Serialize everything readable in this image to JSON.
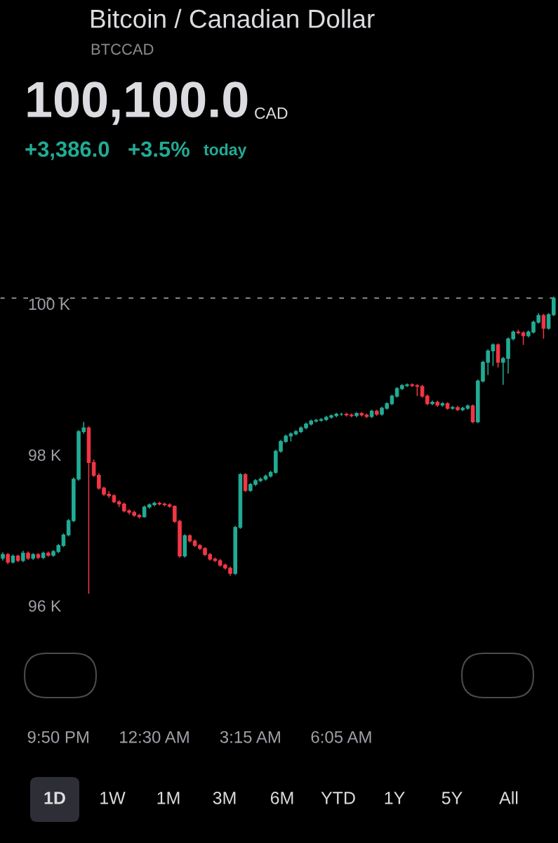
{
  "chart_data": {
    "type": "candlestick",
    "title": "Bitcoin / Canadian Dollar",
    "subtitle": "BTCCAD",
    "annotations": [
      "100,100.0",
      "CAD",
      "+3,386.0",
      "+3.5%",
      "today",
      "1D",
      "1W",
      "1M",
      "3M",
      "6M",
      "YTD",
      "1Y",
      "5Y",
      "All"
    ],
    "categories": [
      null,
      null,
      null,
      null,
      null,
      null,
      null,
      null,
      null,
      null,
      null,
      "9:50 PM",
      null,
      null,
      null,
      null,
      null,
      null,
      null,
      null,
      null,
      null,
      null,
      null,
      null,
      null,
      null,
      null,
      null,
      null,
      "12:30 AM",
      null,
      null,
      null,
      null,
      null,
      null,
      null,
      null,
      null,
      null,
      null,
      null,
      null,
      null,
      null,
      null,
      null,
      null,
      "3:15 AM",
      null,
      null,
      null,
      null,
      null,
      null,
      null,
      null,
      null,
      null,
      null,
      null,
      null,
      null,
      null,
      null,
      null,
      "6:05 AM",
      null,
      null,
      null,
      null,
      null,
      null,
      null,
      null,
      null,
      null,
      null,
      null,
      null,
      null,
      null,
      null,
      null,
      null,
      null,
      null,
      null,
      null,
      null,
      null,
      null,
      null,
      null,
      null,
      null,
      null,
      null,
      null,
      null,
      null,
      null,
      null,
      null,
      null,
      null,
      null,
      null,
      null
    ],
    "ohlc": [
      [
        96650,
        96730,
        96620,
        96700
      ],
      [
        96700,
        96720,
        96570,
        96600
      ],
      [
        96600,
        96700,
        96580,
        96680
      ],
      [
        96680,
        96700,
        96600,
        96620
      ],
      [
        96620,
        96750,
        96600,
        96720
      ],
      [
        96720,
        96740,
        96630,
        96650
      ],
      [
        96650,
        96720,
        96630,
        96700
      ],
      [
        96700,
        96720,
        96640,
        96660
      ],
      [
        96660,
        96740,
        96640,
        96720
      ],
      [
        96720,
        96740,
        96670,
        96690
      ],
      [
        96690,
        96760,
        96670,
        96740
      ],
      [
        96740,
        96840,
        96720,
        96820
      ],
      [
        96820,
        96980,
        96800,
        96960
      ],
      [
        96960,
        97170,
        96940,
        97150
      ],
      [
        97150,
        97720,
        97130,
        97700
      ],
      [
        97700,
        98350,
        97680,
        98330
      ],
      [
        98330,
        98460,
        98300,
        98380
      ],
      [
        98380,
        98400,
        96180,
        97920
      ],
      [
        97920,
        97960,
        97730,
        97750
      ],
      [
        97750,
        97780,
        97560,
        97580
      ],
      [
        97580,
        97600,
        97480,
        97500
      ],
      [
        97500,
        97540,
        97450,
        97480
      ],
      [
        97480,
        97500,
        97380,
        97400
      ],
      [
        97400,
        97420,
        97330,
        97370
      ],
      [
        97370,
        97390,
        97260,
        97280
      ],
      [
        97280,
        97300,
        97230,
        97260
      ],
      [
        97260,
        97280,
        97200,
        97220
      ],
      [
        97220,
        97240,
        97180,
        97200
      ],
      [
        97200,
        97350,
        97190,
        97330
      ],
      [
        97330,
        97380,
        97310,
        97360
      ],
      [
        97360,
        97400,
        97340,
        97380
      ],
      [
        97380,
        97400,
        97350,
        97370
      ],
      [
        97370,
        97390,
        97340,
        97360
      ],
      [
        97360,
        97380,
        97320,
        97340
      ],
      [
        97340,
        97350,
        97120,
        97140
      ],
      [
        97140,
        97160,
        96660,
        96680
      ],
      [
        96680,
        96970,
        96660,
        96950
      ],
      [
        96950,
        96970,
        96860,
        96880
      ],
      [
        96880,
        96900,
        96800,
        96820
      ],
      [
        96820,
        96840,
        96760,
        96780
      ],
      [
        96780,
        96800,
        96680,
        96700
      ],
      [
        96700,
        96720,
        96620,
        96640
      ],
      [
        96640,
        96660,
        96600,
        96620
      ],
      [
        96620,
        96640,
        96540,
        96560
      ],
      [
        96560,
        96580,
        96500,
        96520
      ],
      [
        96520,
        96540,
        96420,
        96450
      ],
      [
        96450,
        97080,
        96430,
        97060
      ],
      [
        97060,
        97780,
        97040,
        97760
      ],
      [
        97760,
        97780,
        97530,
        97550
      ],
      [
        97550,
        97650,
        97530,
        97630
      ],
      [
        97630,
        97700,
        97610,
        97680
      ],
      [
        97680,
        97720,
        97660,
        97700
      ],
      [
        97700,
        97760,
        97680,
        97740
      ],
      [
        97740,
        97810,
        97720,
        97790
      ],
      [
        97790,
        98090,
        97770,
        98070
      ],
      [
        98070,
        98220,
        98050,
        98200
      ],
      [
        98200,
        98290,
        98180,
        98270
      ],
      [
        98270,
        98320,
        98200,
        98300
      ],
      [
        98300,
        98350,
        98280,
        98330
      ],
      [
        98330,
        98400,
        98310,
        98380
      ],
      [
        98380,
        98450,
        98360,
        98430
      ],
      [
        98430,
        98490,
        98410,
        98470
      ],
      [
        98470,
        98500,
        98450,
        98480
      ],
      [
        98480,
        98510,
        98460,
        98490
      ],
      [
        98490,
        98540,
        98470,
        98520
      ],
      [
        98520,
        98560,
        98500,
        98540
      ],
      [
        98540,
        98580,
        98520,
        98560
      ],
      [
        98560,
        98580,
        98540,
        98560
      ],
      [
        98560,
        98580,
        98530,
        98550
      ],
      [
        98550,
        98570,
        98520,
        98540
      ],
      [
        98540,
        98590,
        98520,
        98570
      ],
      [
        98570,
        98590,
        98530,
        98550
      ],
      [
        98550,
        98570,
        98510,
        98530
      ],
      [
        98530,
        98620,
        98510,
        98600
      ],
      [
        98600,
        98620,
        98540,
        98560
      ],
      [
        98560,
        98660,
        98540,
        98640
      ],
      [
        98640,
        98720,
        98620,
        98700
      ],
      [
        98700,
        98820,
        98680,
        98800
      ],
      [
        98800,
        98920,
        98780,
        98900
      ],
      [
        98900,
        98960,
        98880,
        98940
      ],
      [
        98940,
        98970,
        98920,
        98950
      ],
      [
        98950,
        98970,
        98920,
        98940
      ],
      [
        98940,
        98960,
        98800,
        98930
      ],
      [
        98930,
        98950,
        98780,
        98800
      ],
      [
        98800,
        98820,
        98680,
        98700
      ],
      [
        98700,
        98740,
        98680,
        98720
      ],
      [
        98720,
        98740,
        98660,
        98680
      ],
      [
        98680,
        98720,
        98660,
        98700
      ],
      [
        98700,
        98720,
        98620,
        98640
      ],
      [
        98640,
        98670,
        98620,
        98650
      ],
      [
        98650,
        98670,
        98600,
        98620
      ],
      [
        98620,
        98660,
        98600,
        98640
      ],
      [
        98640,
        98690,
        98620,
        98670
      ],
      [
        98670,
        98690,
        98440,
        98460
      ],
      [
        98460,
        99020,
        98440,
        99000
      ],
      [
        99000,
        99270,
        98980,
        99250
      ],
      [
        99250,
        99420,
        99080,
        99400
      ],
      [
        99400,
        99500,
        99200,
        99480
      ],
      [
        99480,
        99500,
        99180,
        99250
      ],
      [
        99250,
        99320,
        98950,
        99300
      ],
      [
        99300,
        99580,
        99100,
        99560
      ],
      [
        99560,
        99670,
        99540,
        99650
      ],
      [
        99650,
        99680,
        99620,
        99640
      ],
      [
        99640,
        99660,
        99480,
        99600
      ],
      [
        99600,
        99670,
        99580,
        99650
      ],
      [
        99650,
        99800,
        99630,
        99780
      ],
      [
        99780,
        99900,
        99760,
        99870
      ],
      [
        99870,
        99890,
        99560,
        99700
      ],
      [
        99700,
        99900,
        99680,
        99880
      ],
      [
        99880,
        100120,
        99860,
        100100
      ]
    ],
    "colors": [
      "#22ab94",
      "#f23645",
      "#22ab94",
      "#f23645",
      "#22ab94",
      "#f23645",
      "#22ab94",
      "#f23645",
      "#22ab94",
      "#f23645",
      "#22ab94",
      "#22ab94",
      "#22ab94",
      "#22ab94",
      "#22ab94",
      "#22ab94",
      "#22ab94",
      "#f23645",
      "#f23645",
      "#f23645",
      "#f23645",
      "#f23645",
      "#f23645",
      "#f23645",
      "#f23645",
      "#f23645",
      "#f23645",
      "#f23645",
      "#22ab94",
      "#22ab94",
      "#22ab94",
      "#f23645",
      "#f23645",
      "#f23645",
      "#f23645",
      "#f23645",
      "#22ab94",
      "#f23645",
      "#f23645",
      "#f23645",
      "#f23645",
      "#f23645",
      "#f23645",
      "#f23645",
      "#f23645",
      "#f23645",
      "#22ab94",
      "#22ab94",
      "#f23645",
      "#22ab94",
      "#22ab94",
      "#22ab94",
      "#22ab94",
      "#22ab94",
      "#22ab94",
      "#22ab94",
      "#22ab94",
      "#22ab94",
      "#22ab94",
      "#22ab94",
      "#22ab94",
      "#22ab94",
      "#22ab94",
      "#22ab94",
      "#22ab94",
      "#22ab94",
      "#22ab94",
      "#22ab94",
      "#f23645",
      "#f23645",
      "#22ab94",
      "#f23645",
      "#f23645",
      "#22ab94",
      "#f23645",
      "#22ab94",
      "#22ab94",
      "#22ab94",
      "#22ab94",
      "#22ab94",
      "#22ab94",
      "#f23645",
      "#f23645",
      "#f23645",
      "#f23645",
      "#22ab94",
      "#f23645",
      "#22ab94",
      "#f23645",
      "#22ab94",
      "#f23645",
      "#22ab94",
      "#22ab94",
      "#f23645",
      "#22ab94",
      "#22ab94",
      "#22ab94",
      "#22ab94",
      "#f23645",
      "#22ab94",
      "#22ab94",
      "#22ab94",
      "#f23645",
      "#f23645",
      "#22ab94",
      "#22ab94",
      "#22ab94",
      "#f23645",
      "#22ab94",
      "#22ab94"
    ],
    "ylim": [
      95670,
      100140
    ],
    "yticks": [
      {
        "value": 96000,
        "label": "96 K"
      },
      {
        "value": 98000,
        "label": "98 K"
      },
      {
        "value": 100000,
        "label": "100 K"
      }
    ],
    "ref_lines": [
      {
        "axis": "y",
        "value": 100100,
        "color": "#9e9e9e",
        "line_style": "dashed"
      }
    ],
    "grid": false,
    "legend": false
  }
}
